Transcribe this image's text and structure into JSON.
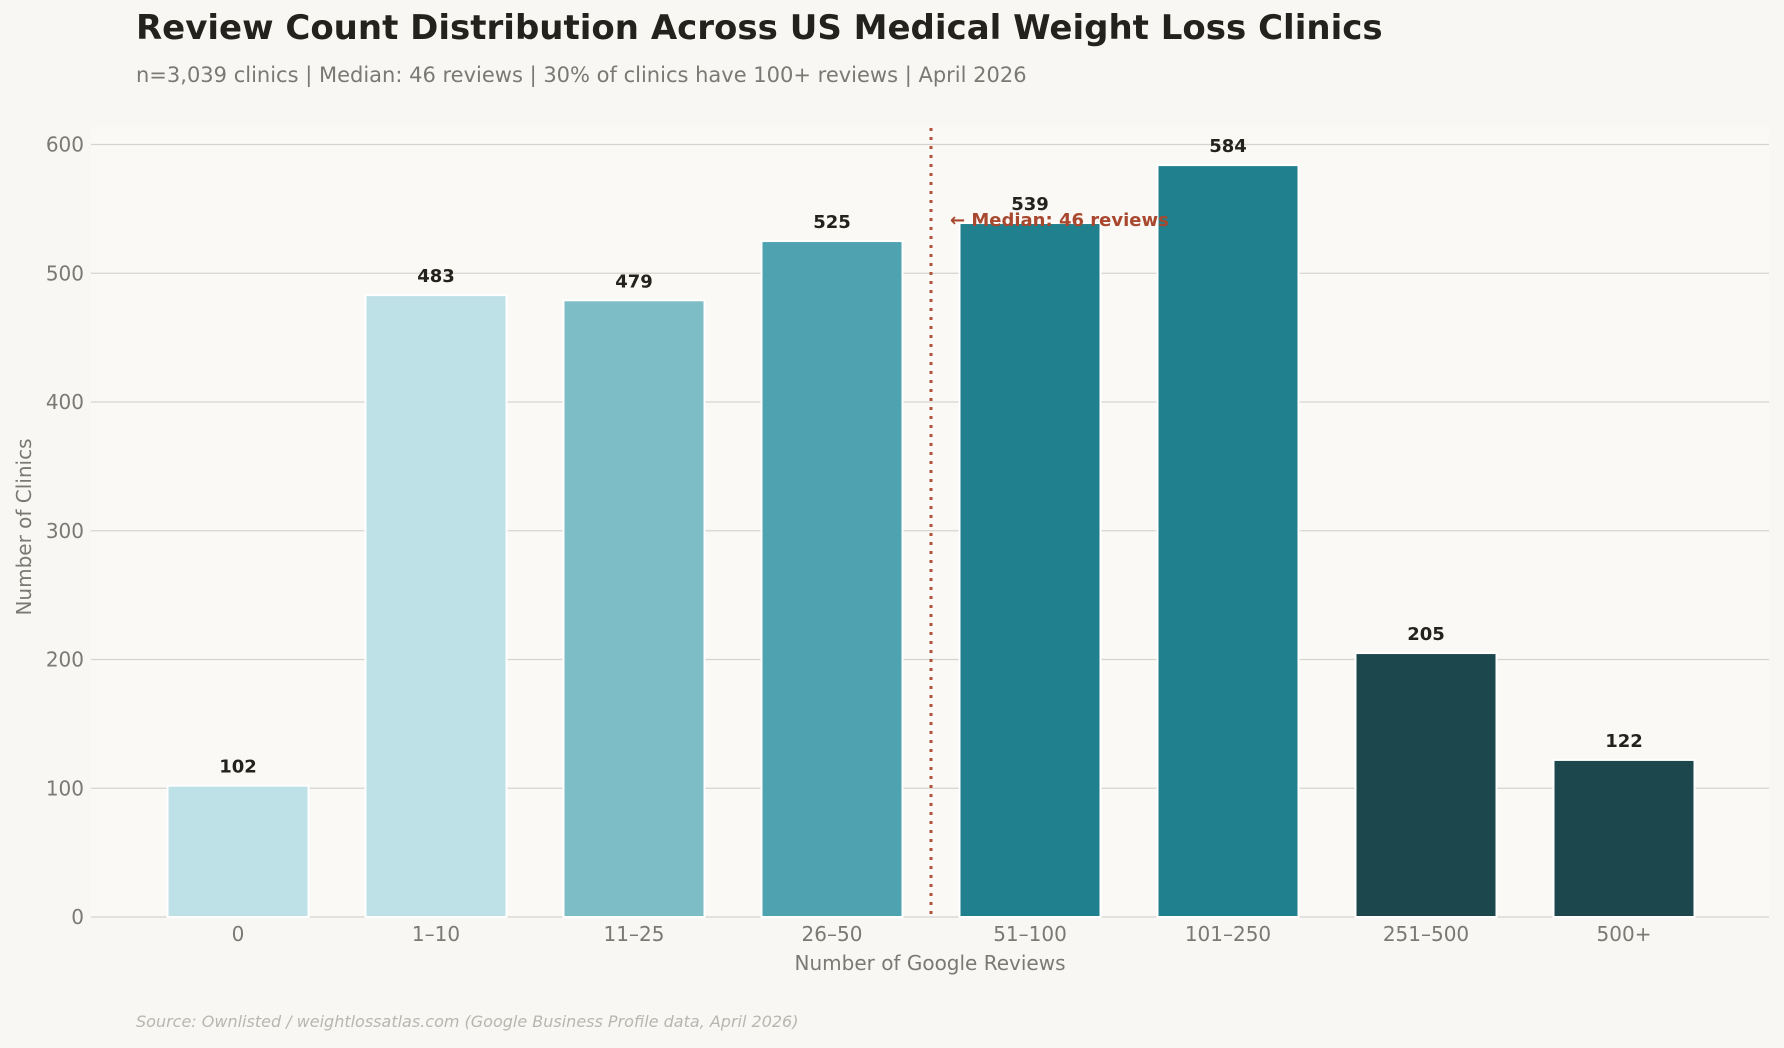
{
  "chart_data": {
    "type": "bar",
    "title": "Review Count Distribution Across US Medical Weight Loss Clinics",
    "subtitle": "n=3,039 clinics | Median: 46 reviews | 30% of clinics have 100+ reviews | April 2026",
    "xlabel": "Number of Google Reviews",
    "ylabel": "Number of Clinics",
    "categories": [
      "0",
      "1–10",
      "11–25",
      "26–50",
      "51–100",
      "101–250",
      "251–500",
      "500+"
    ],
    "values": [
      102,
      483,
      479,
      525,
      539,
      584,
      205,
      122
    ],
    "colors": [
      "#bde1e6",
      "#bde1e6",
      "#7dbec6",
      "#4fa3b0",
      "#20808d",
      "#20808d",
      "#1c474d",
      "#1c474d"
    ],
    "ylim": [
      0,
      615
    ],
    "yticks": [
      0,
      100,
      200,
      300,
      400,
      500,
      600
    ],
    "grid": true,
    "median_line": {
      "label": "← Median: 46 reviews",
      "value": 46,
      "color": "#b0533a"
    },
    "source": "Source: Ownlisted / weightlossatlas.com (Google Business Profile data, April 2026)"
  }
}
